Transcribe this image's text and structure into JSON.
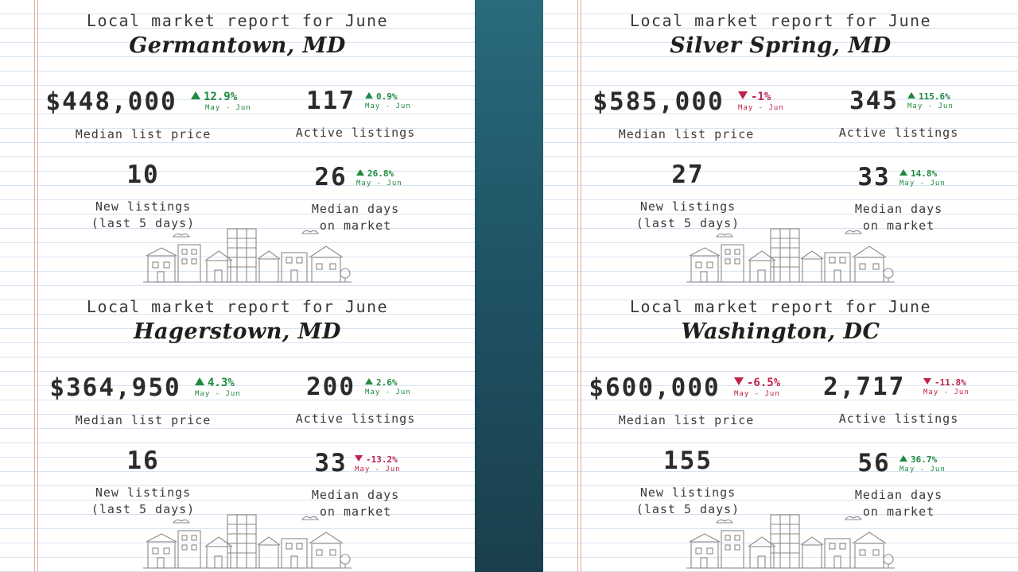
{
  "heading": "Local market report for June",
  "colors": {
    "up": "#1e8a3e",
    "down": "#c0224a",
    "divider_top": "#2a6b7c",
    "divider_bottom": "#1a3f4c",
    "rule": "#d6e4f2",
    "margin": "#e7a9a9"
  },
  "labels": {
    "median_list_price": "Median list price",
    "active_listings": "Active listings",
    "new_listings_1": "New listings",
    "new_listings_2": "(last 5 days)",
    "median_days_1": "Median days",
    "median_days_2": "on market",
    "period": "May - Jun"
  },
  "cards": [
    {
      "city": "Germantown, MD",
      "median_list_price": "$448,000",
      "price_change": "12.9%",
      "price_dir": "up",
      "active_listings": "117",
      "active_change": "0.9%",
      "active_dir": "up",
      "new_listings": "10",
      "median_days": "26",
      "days_change": "26.8%",
      "days_dir": "up"
    },
    {
      "city": "Hagerstown, MD",
      "median_list_price": "$364,950",
      "price_change": "4.3%",
      "price_dir": "up",
      "active_listings": "200",
      "active_change": "2.6%",
      "active_dir": "up",
      "new_listings": "16",
      "median_days": "33",
      "days_change": "-13.2%",
      "days_dir": "down"
    },
    {
      "city": "Silver Spring, MD",
      "median_list_price": "$585,000",
      "price_change": "-1%",
      "price_dir": "down",
      "active_listings": "345",
      "active_change": "115.6%",
      "active_dir": "up",
      "new_listings": "27",
      "median_days": "33",
      "days_change": "14.8%",
      "days_dir": "up"
    },
    {
      "city": "Washington, DC",
      "median_list_price": "$600,000",
      "price_change": "-6.5%",
      "price_dir": "down",
      "active_listings": "2,717",
      "active_change": "-11.8%",
      "active_dir": "down",
      "new_listings": "155",
      "median_days": "56",
      "days_change": "36.7%",
      "days_dir": "up"
    }
  ],
  "icons": {
    "town": "town-skyline-illustration",
    "up": "triangle-up-icon",
    "down": "triangle-down-icon"
  }
}
